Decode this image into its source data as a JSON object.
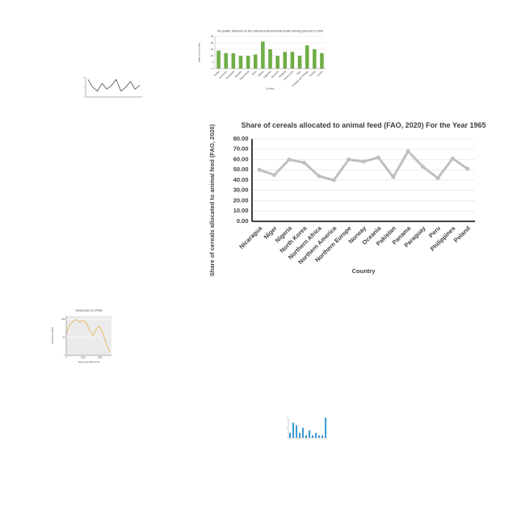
{
  "chart_data": [
    {
      "type": "line",
      "title": "Share of cereals allocated to animal feed (FAO, 2020) For the Year 1965",
      "ylabel": "Share of cereals allocated to animal feed (FAO, 2020)",
      "xlabel": "Country",
      "categories": [
        "Nicaragua",
        "Niger",
        "Nigeria",
        "North Korea",
        "Northern Africa",
        "Northern America",
        "Northern Europe",
        "Norway",
        "Oceania",
        "Pakistan",
        "Panama",
        "Paraguay",
        "Peru",
        "Philippines",
        "Poland"
      ],
      "values": [
        50,
        45,
        60,
        57,
        44,
        40,
        60,
        58,
        62,
        43,
        68,
        53,
        42,
        61,
        51
      ],
      "color": "#bfbfbf",
      "ylim": [
        0,
        80
      ],
      "yticks": [
        {
          "value": 0,
          "label": "0.00"
        },
        {
          "value": 10,
          "label": "10.00"
        },
        {
          "value": 20,
          "label": "20.00"
        },
        {
          "value": 30,
          "label": "30.00"
        },
        {
          "value": 40,
          "label": "40.00"
        },
        {
          "value": 50,
          "label": "50.00"
        },
        {
          "value": 60,
          "label": "60.00"
        },
        {
          "value": 70,
          "label": "70.00"
        },
        {
          "value": 80,
          "label": "80.00"
        }
      ],
      "grid": true
    },
    {
      "type": "bar",
      "title": "Air quality: Measure on the national environmental health ranking (scored) in 2004",
      "ylabel": "Index of air quality",
      "xlabel": "Country",
      "categories": [
        "Sudan",
        "Suriname",
        "Swaziland",
        "Sweden",
        "Switzerland",
        "Syria",
        "Taiwan",
        "Tajikistan",
        "Tanzania",
        "Thailand",
        "Timor-Leste",
        "Togo",
        "Trinidad and Tobago",
        "Tunisia",
        "Turkey"
      ],
      "values": [
        14,
        12,
        12,
        10,
        10,
        11,
        21,
        15,
        10,
        13,
        13,
        10,
        18,
        15,
        12
      ],
      "color": "#70ad47",
      "ylim": [
        0,
        25
      ],
      "yticks": [
        0,
        5,
        10,
        15,
        20,
        25
      ],
      "grid": true
    },
    {
      "type": "line",
      "values": [
        9,
        5,
        3,
        7,
        4,
        6,
        9,
        3,
        5,
        8,
        4,
        6
      ],
      "color": "#333333",
      "ylim": [
        0,
        10
      ],
      "yticks": [
        0,
        5,
        10
      ],
      "grid": false
    },
    {
      "type": "line",
      "title": "Stock price of UTMD",
      "ylabel": "Stock Price (USD)",
      "xlabel": "Days since 2010-07-01",
      "x": [
        0,
        200,
        400,
        600,
        800,
        1000,
        1200,
        1400,
        1600,
        1800,
        2000,
        2200,
        2400,
        2600
      ],
      "values": [
        60,
        85,
        95,
        100,
        92,
        98,
        90,
        70,
        55,
        75,
        80,
        60,
        30,
        10
      ],
      "color": "#e8b04a",
      "xlim": [
        0,
        2700
      ],
      "xticks": [
        0,
        1000,
        2000
      ],
      "ylim": [
        0,
        110
      ],
      "yticks": [
        0,
        50,
        100
      ],
      "grid": true
    },
    {
      "type": "bar",
      "values": [
        2,
        6,
        5,
        2,
        4,
        1,
        3,
        1,
        2,
        1,
        1,
        8
      ],
      "color": "#3a9ad9",
      "ylim": [
        0,
        8
      ],
      "yticks": [
        0,
        4,
        8
      ],
      "grid": false
    }
  ]
}
